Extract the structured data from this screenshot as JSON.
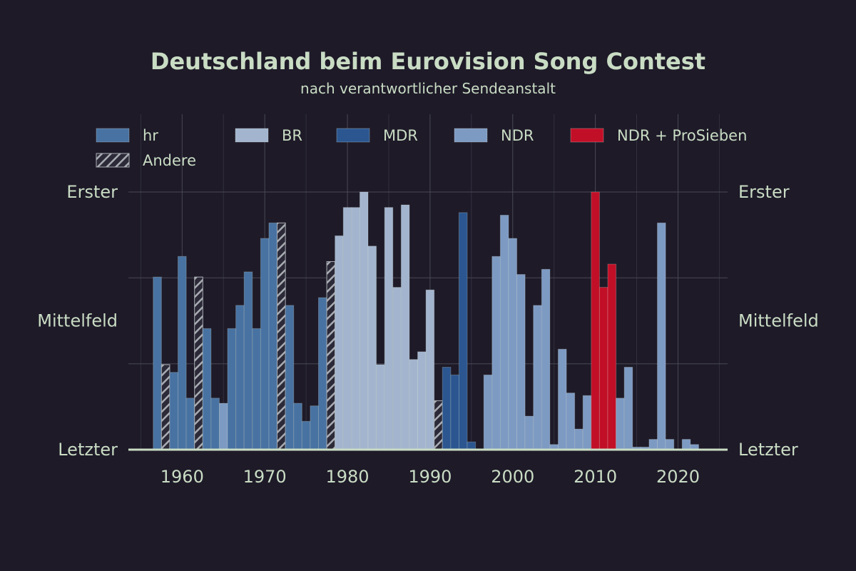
{
  "chart_data": {
    "type": "bar",
    "title": "Deutschland beim Eurovision Song Contest",
    "subtitle": "nach verantwortlicher Sendeanstalt",
    "xlabel": "",
    "ylabel": "",
    "xlim": [
      1953.5,
      2026
    ],
    "ylim": [
      0,
      1
    ],
    "x_ticks": [
      1960,
      1970,
      1980,
      1990,
      2000,
      2010,
      2020
    ],
    "y_ticks": [
      {
        "value": 1,
        "label": "Erster"
      },
      {
        "value": 0.5,
        "label": "Mittelfeld"
      },
      {
        "value": 0,
        "label": "Letzter"
      }
    ],
    "y_gridlines": [
      0,
      0.333,
      0.667,
      1
    ],
    "grid": true,
    "legend_position": "top",
    "legend": [
      {
        "key": "hr",
        "label": "hr"
      },
      {
        "key": "BR",
        "label": "BR"
      },
      {
        "key": "MDR",
        "label": "MDR"
      },
      {
        "key": "NDR",
        "label": "NDR"
      },
      {
        "key": "NDRP7",
        "label": "NDR + ProSieben"
      },
      {
        "key": "Andere",
        "label": "Andere"
      }
    ],
    "colors": {
      "hr": "#4872a1",
      "BR": "#a3b5ce",
      "MDR": "#2b5690",
      "NDR": "#7d9ac3",
      "NDRP7": "#c10f27",
      "Andere": "#6f7583"
    },
    "bars": [
      {
        "year": 1957,
        "value": 0.67,
        "broadcaster": "hr"
      },
      {
        "year": 1958,
        "value": 0.33,
        "broadcaster": "Andere"
      },
      {
        "year": 1959,
        "value": 0.3,
        "broadcaster": "hr"
      },
      {
        "year": 1960,
        "value": 0.75,
        "broadcaster": "hr"
      },
      {
        "year": 1961,
        "value": 0.2,
        "broadcaster": "hr"
      },
      {
        "year": 1962,
        "value": 0.67,
        "broadcaster": "Andere"
      },
      {
        "year": 1963,
        "value": 0.47,
        "broadcaster": "hr"
      },
      {
        "year": 1964,
        "value": 0.2,
        "broadcaster": "hr"
      },
      {
        "year": 1965,
        "value": 0.18,
        "broadcaster": "NDR"
      },
      {
        "year": 1966,
        "value": 0.47,
        "broadcaster": "hr"
      },
      {
        "year": 1967,
        "value": 0.56,
        "broadcaster": "hr"
      },
      {
        "year": 1968,
        "value": 0.69,
        "broadcaster": "hr"
      },
      {
        "year": 1969,
        "value": 0.47,
        "broadcaster": "hr"
      },
      {
        "year": 1970,
        "value": 0.82,
        "broadcaster": "hr"
      },
      {
        "year": 1971,
        "value": 0.88,
        "broadcaster": "hr"
      },
      {
        "year": 1972,
        "value": 0.88,
        "broadcaster": "Andere"
      },
      {
        "year": 1973,
        "value": 0.56,
        "broadcaster": "hr"
      },
      {
        "year": 1974,
        "value": 0.18,
        "broadcaster": "hr"
      },
      {
        "year": 1975,
        "value": 0.11,
        "broadcaster": "hr"
      },
      {
        "year": 1976,
        "value": 0.17,
        "broadcaster": "hr"
      },
      {
        "year": 1977,
        "value": 0.59,
        "broadcaster": "hr"
      },
      {
        "year": 1978,
        "value": 0.73,
        "broadcaster": "Andere"
      },
      {
        "year": 1979,
        "value": 0.83,
        "broadcaster": "BR"
      },
      {
        "year": 1980,
        "value": 0.94,
        "broadcaster": "BR"
      },
      {
        "year": 1981,
        "value": 0.94,
        "broadcaster": "BR"
      },
      {
        "year": 1982,
        "value": 1.0,
        "broadcaster": "BR"
      },
      {
        "year": 1983,
        "value": 0.79,
        "broadcaster": "BR"
      },
      {
        "year": 1984,
        "value": 0.33,
        "broadcaster": "BR"
      },
      {
        "year": 1985,
        "value": 0.94,
        "broadcaster": "BR"
      },
      {
        "year": 1986,
        "value": 0.63,
        "broadcaster": "BR"
      },
      {
        "year": 1987,
        "value": 0.95,
        "broadcaster": "BR"
      },
      {
        "year": 1988,
        "value": 0.35,
        "broadcaster": "BR"
      },
      {
        "year": 1989,
        "value": 0.38,
        "broadcaster": "BR"
      },
      {
        "year": 1990,
        "value": 0.62,
        "broadcaster": "BR"
      },
      {
        "year": 1991,
        "value": 0.19,
        "broadcaster": "Andere"
      },
      {
        "year": 1992,
        "value": 0.32,
        "broadcaster": "MDR"
      },
      {
        "year": 1993,
        "value": 0.29,
        "broadcaster": "MDR"
      },
      {
        "year": 1994,
        "value": 0.92,
        "broadcaster": "MDR"
      },
      {
        "year": 1995,
        "value": 0.03,
        "broadcaster": "MDR"
      },
      {
        "year": 1997,
        "value": 0.29,
        "broadcaster": "NDR"
      },
      {
        "year": 1998,
        "value": 0.75,
        "broadcaster": "NDR"
      },
      {
        "year": 1999,
        "value": 0.91,
        "broadcaster": "NDR"
      },
      {
        "year": 2000,
        "value": 0.82,
        "broadcaster": "NDR"
      },
      {
        "year": 2001,
        "value": 0.68,
        "broadcaster": "NDR"
      },
      {
        "year": 2002,
        "value": 0.13,
        "broadcaster": "NDR"
      },
      {
        "year": 2003,
        "value": 0.56,
        "broadcaster": "NDR"
      },
      {
        "year": 2004,
        "value": 0.7,
        "broadcaster": "NDR"
      },
      {
        "year": 2005,
        "value": 0.02,
        "broadcaster": "NDR"
      },
      {
        "year": 2006,
        "value": 0.39,
        "broadcaster": "NDR"
      },
      {
        "year": 2007,
        "value": 0.22,
        "broadcaster": "NDR"
      },
      {
        "year": 2008,
        "value": 0.08,
        "broadcaster": "NDR"
      },
      {
        "year": 2009,
        "value": 0.21,
        "broadcaster": "NDR"
      },
      {
        "year": 2010,
        "value": 1.0,
        "broadcaster": "NDRP7"
      },
      {
        "year": 2011,
        "value": 0.63,
        "broadcaster": "NDRP7"
      },
      {
        "year": 2012,
        "value": 0.72,
        "broadcaster": "NDRP7"
      },
      {
        "year": 2013,
        "value": 0.2,
        "broadcaster": "NDR"
      },
      {
        "year": 2014,
        "value": 0.32,
        "broadcaster": "NDR"
      },
      {
        "year": 2015,
        "value": 0.01,
        "broadcaster": "NDR"
      },
      {
        "year": 2016,
        "value": 0.01,
        "broadcaster": "NDR"
      },
      {
        "year": 2017,
        "value": 0.04,
        "broadcaster": "NDR"
      },
      {
        "year": 2018,
        "value": 0.88,
        "broadcaster": "NDR"
      },
      {
        "year": 2019,
        "value": 0.04,
        "broadcaster": "NDR"
      },
      {
        "year": 2021,
        "value": 0.04,
        "broadcaster": "NDR"
      },
      {
        "year": 2022,
        "value": 0.02,
        "broadcaster": "NDR"
      }
    ]
  }
}
